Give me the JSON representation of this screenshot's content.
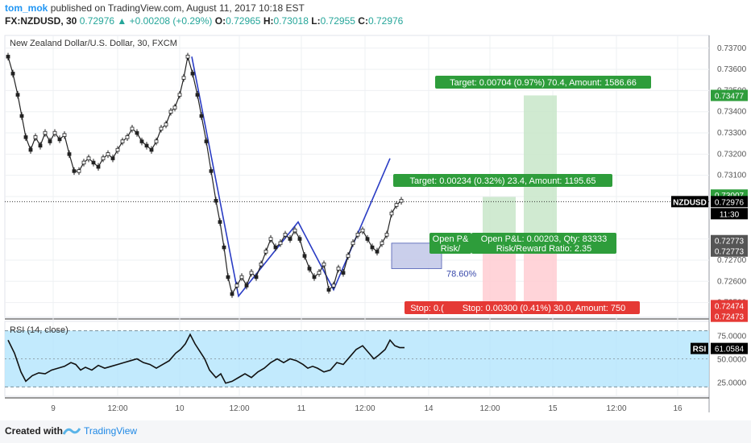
{
  "header": {
    "user": "tom_mok",
    "published": "published on TradingView.com, August 11, 2017 10:18 EST",
    "symbol_line": "FX:NZDUSD, 30",
    "last": "0.72976",
    "change": "+0.00208 (+0.29%)",
    "open_label": "O:",
    "open": "0.72965",
    "high_label": "H:",
    "high": "0.73018",
    "low_label": "L:",
    "low": "0.72955",
    "close_label": "C:",
    "close": "0.72976"
  },
  "footer": {
    "created": "Created with",
    "brand": "TradingView"
  },
  "chart_data": {
    "type": "candlestick",
    "title": "New Zealand Dollar/U.S. Dollar, 30, FXCM",
    "y_ticks": [
      "0.73700",
      "0.73600",
      "0.73500",
      "0.73400",
      "0.73300",
      "0.73200",
      "0.73100",
      "0.73000",
      "0.72800",
      "0.72700",
      "0.72600",
      "0.72500"
    ],
    "ylim": [
      0.7243,
      0.7376
    ],
    "x_ticks": [
      "9",
      "12:00",
      "10",
      "12:00",
      "11",
      "12:00",
      "14",
      "12:00",
      "15",
      "12:00",
      "16"
    ],
    "price_path": [
      [
        0,
        0.7366
      ],
      [
        6,
        0.7358
      ],
      [
        12,
        0.7348
      ],
      [
        17,
        0.7338
      ],
      [
        22,
        0.7328
      ],
      [
        28,
        0.7322
      ],
      [
        34,
        0.7328
      ],
      [
        40,
        0.7324
      ],
      [
        46,
        0.733
      ],
      [
        52,
        0.7326
      ],
      [
        58,
        0.733
      ],
      [
        64,
        0.7327
      ],
      [
        70,
        0.7329
      ],
      [
        76,
        0.732
      ],
      [
        82,
        0.7312
      ],
      [
        88,
        0.7312
      ],
      [
        94,
        0.7316
      ],
      [
        100,
        0.7318
      ],
      [
        106,
        0.7316
      ],
      [
        112,
        0.7314
      ],
      [
        118,
        0.7318
      ],
      [
        124,
        0.732
      ],
      [
        130,
        0.7318
      ],
      [
        136,
        0.7322
      ],
      [
        142,
        0.7326
      ],
      [
        148,
        0.7328
      ],
      [
        154,
        0.7332
      ],
      [
        160,
        0.733
      ],
      [
        166,
        0.7326
      ],
      [
        172,
        0.7324
      ],
      [
        178,
        0.7322
      ],
      [
        184,
        0.7326
      ],
      [
        190,
        0.7332
      ],
      [
        196,
        0.7334
      ],
      [
        202,
        0.734
      ],
      [
        207,
        0.7342
      ],
      [
        213,
        0.7348
      ],
      [
        218,
        0.7356
      ],
      [
        223,
        0.7366
      ],
      [
        229,
        0.7358
      ],
      [
        235,
        0.7348
      ],
      [
        240,
        0.7338
      ],
      [
        246,
        0.7326
      ],
      [
        252,
        0.7312
      ],
      [
        258,
        0.7298
      ],
      [
        263,
        0.7288
      ],
      [
        268,
        0.7276
      ],
      [
        273,
        0.7262
      ],
      [
        278,
        0.7254
      ],
      [
        284,
        0.7258
      ],
      [
        290,
        0.7262
      ],
      [
        296,
        0.7258
      ],
      [
        302,
        0.7264
      ],
      [
        308,
        0.7262
      ],
      [
        314,
        0.7268
      ],
      [
        320,
        0.7274
      ],
      [
        326,
        0.728
      ],
      [
        332,
        0.7276
      ],
      [
        338,
        0.7278
      ],
      [
        344,
        0.7282
      ],
      [
        350,
        0.728
      ],
      [
        356,
        0.7284
      ],
      [
        362,
        0.728
      ],
      [
        368,
        0.7272
      ],
      [
        374,
        0.7266
      ],
      [
        380,
        0.7262
      ],
      [
        386,
        0.7264
      ],
      [
        392,
        0.7268
      ],
      [
        398,
        0.7256
      ],
      [
        404,
        0.7258
      ],
      [
        410,
        0.7266
      ],
      [
        416,
        0.7264
      ],
      [
        422,
        0.7272
      ],
      [
        428,
        0.7278
      ],
      [
        434,
        0.7282
      ],
      [
        440,
        0.7284
      ],
      [
        446,
        0.728
      ],
      [
        452,
        0.7276
      ],
      [
        458,
        0.7274
      ],
      [
        464,
        0.7278
      ],
      [
        470,
        0.7282
      ],
      [
        476,
        0.7292
      ],
      [
        482,
        0.7296
      ],
      [
        488,
        0.7298
      ]
    ],
    "zigzag": [
      [
        228,
        0.7366
      ],
      [
        286,
        0.7253
      ],
      [
        360,
        0.7288
      ],
      [
        404,
        0.7256
      ],
      [
        474,
        0.7318
      ]
    ],
    "fib_label": "78.60%",
    "fib_box": {
      "top": 0.7278,
      "bottom": 0.7266
    },
    "position_long": {
      "target_top": 0.73477,
      "entry": 0.72773,
      "stop": 0.72473,
      "target_label": "Target: 0.00704 (0.97%) 70.4, Amount: 1586.66",
      "open_label": "Open P&L: 0.00203, Qty: 83333",
      "risk_label": "Risk/Reward Ratio: 2.35",
      "stop_label": "Stop: 0.00300 (0.41%) 30.0, Amount: 750"
    },
    "position_short_tgt": {
      "target_label": "Target: 0.00234 (0.32%) 23.4, Amount: 1195.65",
      "open_label": "Open P&",
      "risk_label": "Risk/",
      "stop_label": "Stop: 0.("
    },
    "price_labels": [
      {
        "value": "0.73477",
        "color": "#2e9d3b"
      },
      {
        "value": "0.73007",
        "color": "#2e9d3b"
      },
      {
        "value": "0.72976",
        "color": "#000000"
      },
      {
        "value": "11:30",
        "color": "#000000"
      },
      {
        "value": "0.72773",
        "color": "#555555"
      },
      {
        "value": "0.72773",
        "color": "#555555"
      },
      {
        "value": "0.72474",
        "color": "#e53935"
      },
      {
        "value": "0.72473",
        "color": "#e53935"
      }
    ],
    "ticker_label": "NZDUSD",
    "rsi": {
      "title": "RSI (14, close)",
      "y_ticks": [
        "75.0000",
        "50.0000",
        "25.0000"
      ],
      "ylim": [
        10,
        90
      ],
      "band": [
        20,
        80
      ],
      "last_label": "RSI",
      "last_value": "61.0584",
      "values": [
        [
          0,
          70
        ],
        [
          8,
          56
        ],
        [
          16,
          36
        ],
        [
          22,
          26
        ],
        [
          30,
          32
        ],
        [
          38,
          35
        ],
        [
          46,
          34
        ],
        [
          54,
          38
        ],
        [
          62,
          40
        ],
        [
          70,
          42
        ],
        [
          78,
          46
        ],
        [
          84,
          44
        ],
        [
          90,
          38
        ],
        [
          96,
          41
        ],
        [
          104,
          38
        ],
        [
          112,
          43
        ],
        [
          120,
          40
        ],
        [
          128,
          42
        ],
        [
          136,
          44
        ],
        [
          144,
          46
        ],
        [
          152,
          48
        ],
        [
          160,
          50
        ],
        [
          168,
          46
        ],
        [
          176,
          44
        ],
        [
          184,
          40
        ],
        [
          192,
          44
        ],
        [
          200,
          48
        ],
        [
          208,
          56
        ],
        [
          214,
          60
        ],
        [
          220,
          66
        ],
        [
          226,
          76
        ],
        [
          232,
          66
        ],
        [
          238,
          58
        ],
        [
          244,
          50
        ],
        [
          250,
          38
        ],
        [
          258,
          30
        ],
        [
          264,
          34
        ],
        [
          270,
          24
        ],
        [
          278,
          26
        ],
        [
          286,
          30
        ],
        [
          294,
          34
        ],
        [
          302,
          30
        ],
        [
          310,
          36
        ],
        [
          318,
          40
        ],
        [
          326,
          46
        ],
        [
          334,
          50
        ],
        [
          342,
          46
        ],
        [
          350,
          50
        ],
        [
          358,
          48
        ],
        [
          366,
          44
        ],
        [
          372,
          40
        ],
        [
          378,
          42
        ],
        [
          384,
          40
        ],
        [
          392,
          36
        ],
        [
          400,
          38
        ],
        [
          408,
          46
        ],
        [
          416,
          44
        ],
        [
          424,
          52
        ],
        [
          432,
          60
        ],
        [
          440,
          64
        ],
        [
          448,
          56
        ],
        [
          454,
          50
        ],
        [
          460,
          54
        ],
        [
          468,
          60
        ],
        [
          474,
          70
        ],
        [
          480,
          64
        ],
        [
          486,
          62
        ],
        [
          492,
          62
        ]
      ]
    }
  }
}
